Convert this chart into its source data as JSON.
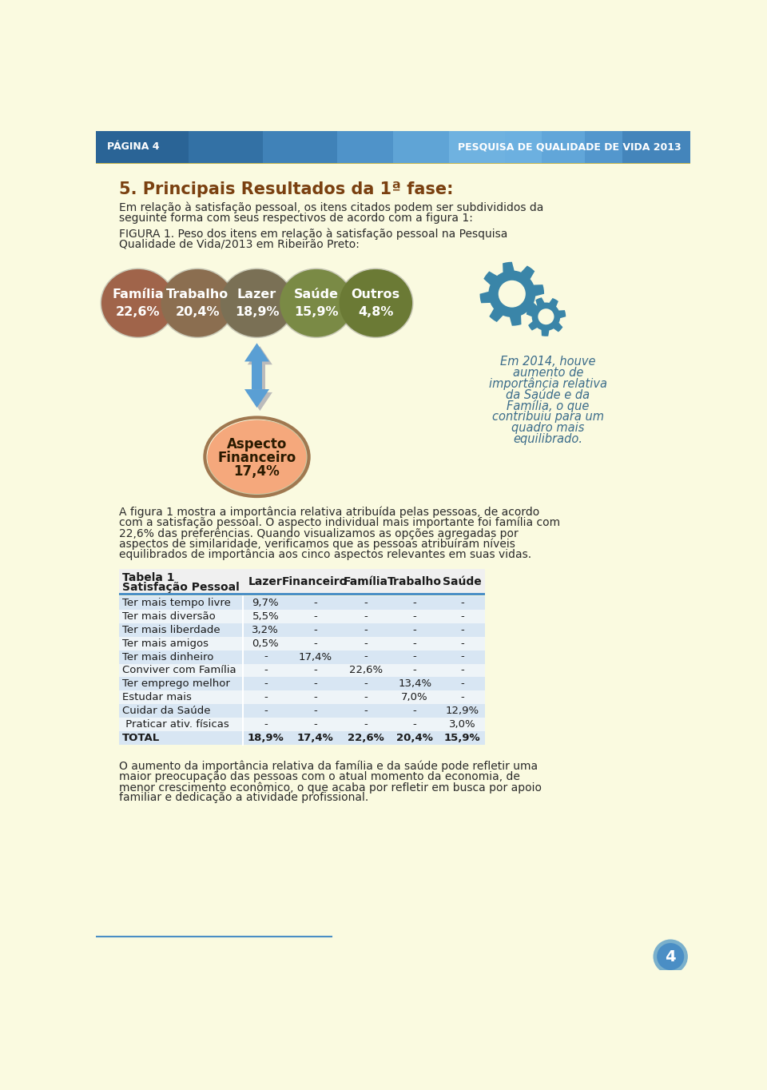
{
  "page_bg": "#FAFAE0",
  "header_text_left": "PÁGINA 4",
  "header_text_right": "PESQUISA DE QUALIDADE DE VIDA 2013",
  "title": "5. Principais Resultados da 1ª fase:",
  "intro_line1": "Em relação à satisfação pessoal, os itens citados podem ser subdivididos da",
  "intro_line2": "seguinte forma com seus respectivos de acordo com a figura 1:",
  "figura_line1": "FIGURA 1. Peso dos itens em relação à satisfação pessoal na Pesquisa",
  "figura_line2": "Qualidade de Vida/2013 em Ribeirão Preto:",
  "circles": [
    {
      "label": "Família",
      "value": "22,6%",
      "color": "#A0644A"
    },
    {
      "label": "Trabalho",
      "value": "20,4%",
      "color": "#8B6E50"
    },
    {
      "label": "Lazer",
      "value": "18,9%",
      "color": "#7A7055"
    },
    {
      "label": "Saúde",
      "value": "15,9%",
      "color": "#7A8A45"
    },
    {
      "label": "Outros",
      "value": "4,8%",
      "color": "#6B7A35"
    }
  ],
  "aspecto_fill": "#F5A87C",
  "aspecto_border": "#A07850",
  "gear_color": "#3a85a8",
  "side_text_lines": [
    "Em 2014, houve",
    "aumento de",
    "importância relativa",
    "da Saúde e da",
    "Família, o que",
    "contribuiu para um",
    "quadro mais",
    "equilibrado."
  ],
  "side_text_color": "#3a6b8a",
  "body_text1_lines": [
    "A figura 1 mostra a importância relativa atribuída pelas pessoas, de acordo",
    "com a satisfação pessoal. O aspecto individual mais importante foi família com",
    "22,6% das preferências. Quando visualizamos as opções agregadas por",
    "aspectos de similaridade, verificamos que as pessoas atribuíram níveis",
    "equilibrados de importância aos cinco aspectos relevantes em suas vidas."
  ],
  "table_rows": [
    [
      "Ter mais tempo livre",
      "9,7%",
      "-",
      "-",
      "-",
      "-",
      false
    ],
    [
      "Ter mais diversão",
      "5,5%",
      "-",
      "-",
      "-",
      "-",
      false
    ],
    [
      "Ter mais liberdade",
      "3,2%",
      "-",
      "-",
      "-",
      "-",
      false
    ],
    [
      "Ter mais amigos",
      "0,5%",
      "-",
      "-",
      "-",
      "-",
      false
    ],
    [
      "Ter mais dinheiro",
      "-",
      "17,4%",
      "-",
      "-",
      "-",
      false
    ],
    [
      "Conviver com Família",
      "-",
      "-",
      "22,6%",
      "-",
      "-",
      false
    ],
    [
      "Ter emprego melhor",
      "-",
      "-",
      "-",
      "13,4%",
      "-",
      false
    ],
    [
      "Estudar mais",
      "-",
      "-",
      "-",
      "7,0%",
      "-",
      false
    ],
    [
      "Cuidar da Saúde",
      "-",
      "-",
      "-",
      "-",
      "12,9%",
      false
    ],
    [
      " Praticar ativ. físicas",
      "-",
      "-",
      "-",
      "-",
      "3,0%",
      false
    ],
    [
      "TOTAL",
      "18,9%",
      "17,4%",
      "22,6%",
      "20,4%",
      "15,9%",
      true
    ]
  ],
  "body_text2_lines": [
    "O aumento da importância relativa da família e da saúde pode refletir uma",
    "maior preocupação das pessoas com o atual momento da economia, de",
    "menor crescimento econômico, o que acaba por refletir em busca por apoio",
    "familiar e dedicação a atividade profissional."
  ],
  "page_number": "4"
}
